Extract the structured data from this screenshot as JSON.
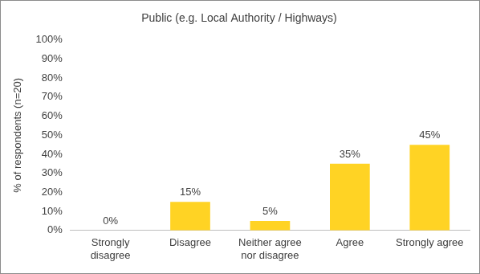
{
  "chart_data": {
    "type": "bar",
    "title": "Public (e.g. Local Authority / Highways)",
    "y_label": "% of respondents (n=20)",
    "categories": [
      "Strongly disagree",
      "Disagree",
      "Neither agree nor disagree",
      "Agree",
      "Strongly agree"
    ],
    "values": [
      0,
      15,
      5,
      35,
      45
    ],
    "value_labels": [
      "0%",
      "15%",
      "5%",
      "35%",
      "45%"
    ],
    "data_labels": true,
    "color": "#ffd324",
    "ylim": [
      0,
      100
    ],
    "yticks": [
      {
        "value": 0,
        "label": "0%"
      },
      {
        "value": 10,
        "label": "10%"
      },
      {
        "value": 20,
        "label": "20%"
      },
      {
        "value": 30,
        "label": "30%"
      },
      {
        "value": 40,
        "label": "40%"
      },
      {
        "value": 50,
        "label": "50%"
      },
      {
        "value": 60,
        "label": "60%"
      },
      {
        "value": 70,
        "label": "70%"
      },
      {
        "value": 80,
        "label": "80%"
      },
      {
        "value": 90,
        "label": "90%"
      },
      {
        "value": 100,
        "label": "100%"
      }
    ],
    "grid": false
  }
}
